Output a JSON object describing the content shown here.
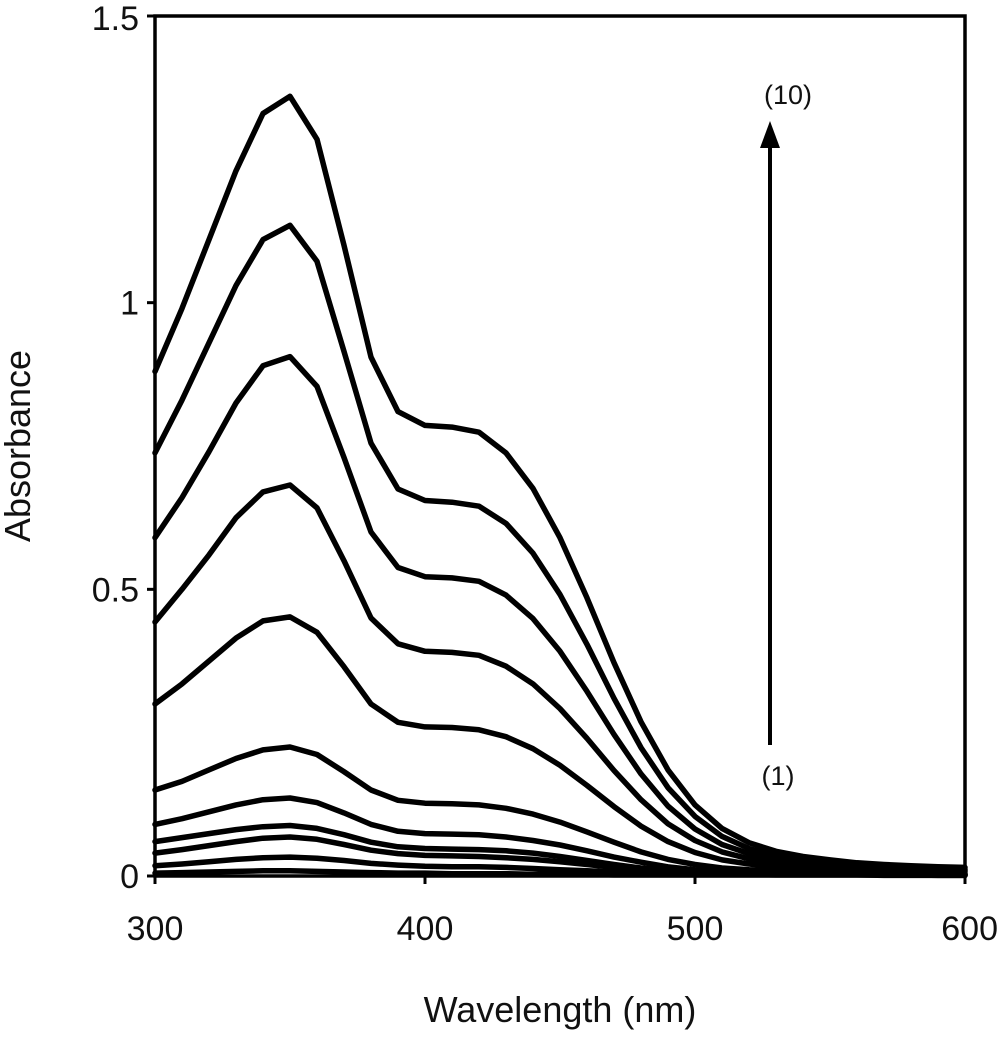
{
  "chart_data": {
    "type": "line",
    "title": "",
    "xlabel": "Wavelength (nm)",
    "ylabel": "Absorbance",
    "xlim": [
      300,
      600
    ],
    "ylim": [
      0,
      1.5
    ],
    "x_ticks": [
      "300",
      "400",
      "500",
      "600"
    ],
    "y_ticks": [
      "0",
      "0.5",
      "1",
      "1.5"
    ],
    "grid": false,
    "legend": "none",
    "annotations": {
      "arrow_start_label": "(1)",
      "arrow_end_label": "(10)"
    },
    "x": [
      300,
      310,
      320,
      330,
      340,
      350,
      360,
      370,
      380,
      390,
      400,
      410,
      420,
      430,
      440,
      450,
      460,
      470,
      480,
      490,
      500,
      510,
      520,
      530,
      540,
      550,
      560,
      570,
      580,
      590,
      600
    ],
    "series": [
      {
        "values": [
          0.005,
          0.006,
          0.007,
          0.008,
          0.009,
          0.009,
          0.008,
          0.007,
          0.006,
          0.005,
          0.005,
          0.004,
          0.004,
          0.004,
          0.003,
          0.003,
          0.003,
          0.002,
          0.002,
          0.002,
          0.002,
          0.002,
          0.002,
          0.002,
          0.002,
          0.002,
          0.002,
          0.001,
          0.001,
          0.001,
          0.001
        ]
      },
      {
        "values": [
          0.018,
          0.021,
          0.025,
          0.029,
          0.032,
          0.033,
          0.031,
          0.027,
          0.022,
          0.019,
          0.017,
          0.016,
          0.016,
          0.015,
          0.013,
          0.011,
          0.009,
          0.007,
          0.005,
          0.004,
          0.003,
          0.003,
          0.003,
          0.002,
          0.002,
          0.002,
          0.002,
          0.002,
          0.002,
          0.001,
          0.001
        ]
      },
      {
        "values": [
          0.04,
          0.046,
          0.053,
          0.06,
          0.066,
          0.068,
          0.064,
          0.055,
          0.045,
          0.039,
          0.036,
          0.035,
          0.034,
          0.032,
          0.029,
          0.025,
          0.02,
          0.015,
          0.011,
          0.008,
          0.006,
          0.005,
          0.004,
          0.004,
          0.003,
          0.003,
          0.003,
          0.002,
          0.002,
          0.002,
          0.002
        ]
      },
      {
        "values": [
          0.06,
          0.067,
          0.074,
          0.081,
          0.086,
          0.088,
          0.083,
          0.072,
          0.059,
          0.051,
          0.048,
          0.047,
          0.046,
          0.044,
          0.04,
          0.034,
          0.027,
          0.02,
          0.014,
          0.01,
          0.008,
          0.006,
          0.005,
          0.005,
          0.004,
          0.004,
          0.003,
          0.003,
          0.003,
          0.002,
          0.002
        ]
      },
      {
        "values": [
          0.09,
          0.1,
          0.112,
          0.124,
          0.133,
          0.136,
          0.128,
          0.11,
          0.09,
          0.078,
          0.074,
          0.073,
          0.072,
          0.068,
          0.062,
          0.054,
          0.044,
          0.033,
          0.024,
          0.016,
          0.011,
          0.008,
          0.007,
          0.006,
          0.005,
          0.005,
          0.004,
          0.004,
          0.003,
          0.003,
          0.003
        ]
      },
      {
        "values": [
          0.15,
          0.165,
          0.185,
          0.205,
          0.22,
          0.225,
          0.212,
          0.182,
          0.15,
          0.132,
          0.127,
          0.126,
          0.124,
          0.118,
          0.108,
          0.094,
          0.077,
          0.059,
          0.042,
          0.029,
          0.02,
          0.014,
          0.011,
          0.009,
          0.008,
          0.007,
          0.006,
          0.005,
          0.004,
          0.004,
          0.003
        ]
      },
      {
        "values": [
          0.3,
          0.335,
          0.375,
          0.415,
          0.445,
          0.452,
          0.425,
          0.365,
          0.3,
          0.268,
          0.26,
          0.259,
          0.255,
          0.243,
          0.222,
          0.193,
          0.158,
          0.121,
          0.087,
          0.06,
          0.041,
          0.028,
          0.021,
          0.016,
          0.013,
          0.011,
          0.009,
          0.008,
          0.007,
          0.006,
          0.005
        ]
      },
      {
        "values": [
          0.443,
          0.5,
          0.56,
          0.625,
          0.67,
          0.682,
          0.642,
          0.55,
          0.45,
          0.405,
          0.392,
          0.39,
          0.385,
          0.366,
          0.335,
          0.292,
          0.24,
          0.184,
          0.133,
          0.091,
          0.062,
          0.042,
          0.03,
          0.023,
          0.018,
          0.015,
          0.013,
          0.011,
          0.01,
          0.009,
          0.008
        ]
      },
      {
        "values": [
          0.59,
          0.66,
          0.74,
          0.825,
          0.89,
          0.906,
          0.854,
          0.73,
          0.6,
          0.538,
          0.522,
          0.52,
          0.514,
          0.49,
          0.449,
          0.392,
          0.322,
          0.247,
          0.178,
          0.122,
          0.082,
          0.055,
          0.039,
          0.029,
          0.023,
          0.019,
          0.016,
          0.014,
          0.012,
          0.011,
          0.01
        ]
      },
      {
        "values": [
          0.738,
          0.83,
          0.93,
          1.03,
          1.11,
          1.135,
          1.072,
          0.915,
          0.755,
          0.675,
          0.655,
          0.652,
          0.645,
          0.615,
          0.563,
          0.491,
          0.404,
          0.31,
          0.224,
          0.154,
          0.104,
          0.069,
          0.048,
          0.036,
          0.028,
          0.023,
          0.019,
          0.017,
          0.015,
          0.013,
          0.012
        ]
      },
      {
        "values": [
          0.88,
          0.99,
          1.11,
          1.23,
          1.33,
          1.36,
          1.285,
          1.1,
          0.905,
          0.81,
          0.786,
          0.783,
          0.774,
          0.738,
          0.676,
          0.59,
          0.485,
          0.372,
          0.269,
          0.185,
          0.124,
          0.083,
          0.058,
          0.043,
          0.034,
          0.028,
          0.023,
          0.02,
          0.018,
          0.016,
          0.015
        ]
      }
    ]
  }
}
